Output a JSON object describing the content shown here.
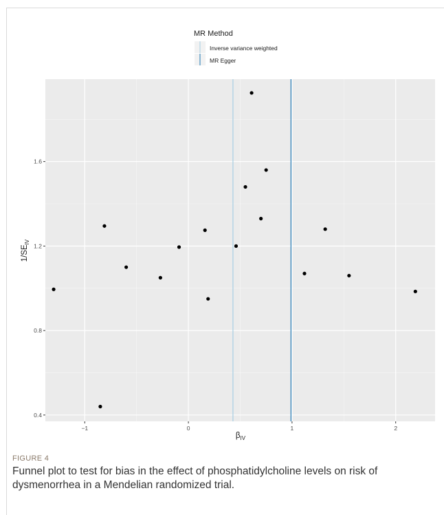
{
  "figure": {
    "label": "FIGURE 4",
    "caption": "Funnel plot to test for bias in the effect of phosphatidylcholine levels on risk of dysmenorrhea in a Mendelian randomized trial."
  },
  "chart_data": {
    "type": "scatter",
    "title": "",
    "xlabel": "βIV",
    "xlabel_main": "β",
    "xlabel_sub": "IV",
    "ylabel": "1/SEIV",
    "ylabel_main": "1/SE",
    "ylabel_sub": "IV",
    "xlim": [
      -1.38,
      2.38
    ],
    "ylim": [
      0.37,
      1.99
    ],
    "xticks": [
      -1,
      0,
      1,
      2
    ],
    "xtick_labels": [
      "−1",
      "0",
      "1",
      "2"
    ],
    "yticks": [
      0.4,
      0.8,
      1.2,
      1.6
    ],
    "ytick_labels": [
      "0.4",
      "0.8",
      "1.2",
      "1.6"
    ],
    "grid": true,
    "legend": {
      "title": "MR Method",
      "position": "top",
      "entries": [
        {
          "name": "Inverse variance weighted",
          "color": "#a6cee3"
        },
        {
          "name": "MR Egger",
          "color": "#1f78b4"
        }
      ]
    },
    "vlines": [
      {
        "name": "Inverse variance weighted",
        "x": 0.43,
        "color": "#a6cee3"
      },
      {
        "name": "MR Egger",
        "x": 0.99,
        "color": "#1f78b4"
      }
    ],
    "points": [
      {
        "x": -1.3,
        "y": 0.995
      },
      {
        "x": -0.85,
        "y": 0.44
      },
      {
        "x": -0.81,
        "y": 1.295
      },
      {
        "x": -0.6,
        "y": 1.1
      },
      {
        "x": -0.27,
        "y": 1.05
      },
      {
        "x": -0.09,
        "y": 1.195
      },
      {
        "x": 0.16,
        "y": 1.275
      },
      {
        "x": 0.19,
        "y": 0.95
      },
      {
        "x": 0.46,
        "y": 1.2
      },
      {
        "x": 0.55,
        "y": 1.48
      },
      {
        "x": 0.61,
        "y": 1.925
      },
      {
        "x": 0.7,
        "y": 1.33
      },
      {
        "x": 0.75,
        "y": 1.56
      },
      {
        "x": 1.12,
        "y": 1.07
      },
      {
        "x": 1.32,
        "y": 1.28
      },
      {
        "x": 1.55,
        "y": 1.06
      },
      {
        "x": 2.19,
        "y": 0.985
      }
    ],
    "point_color": "#000000",
    "panel_color": "#ebebeb"
  }
}
